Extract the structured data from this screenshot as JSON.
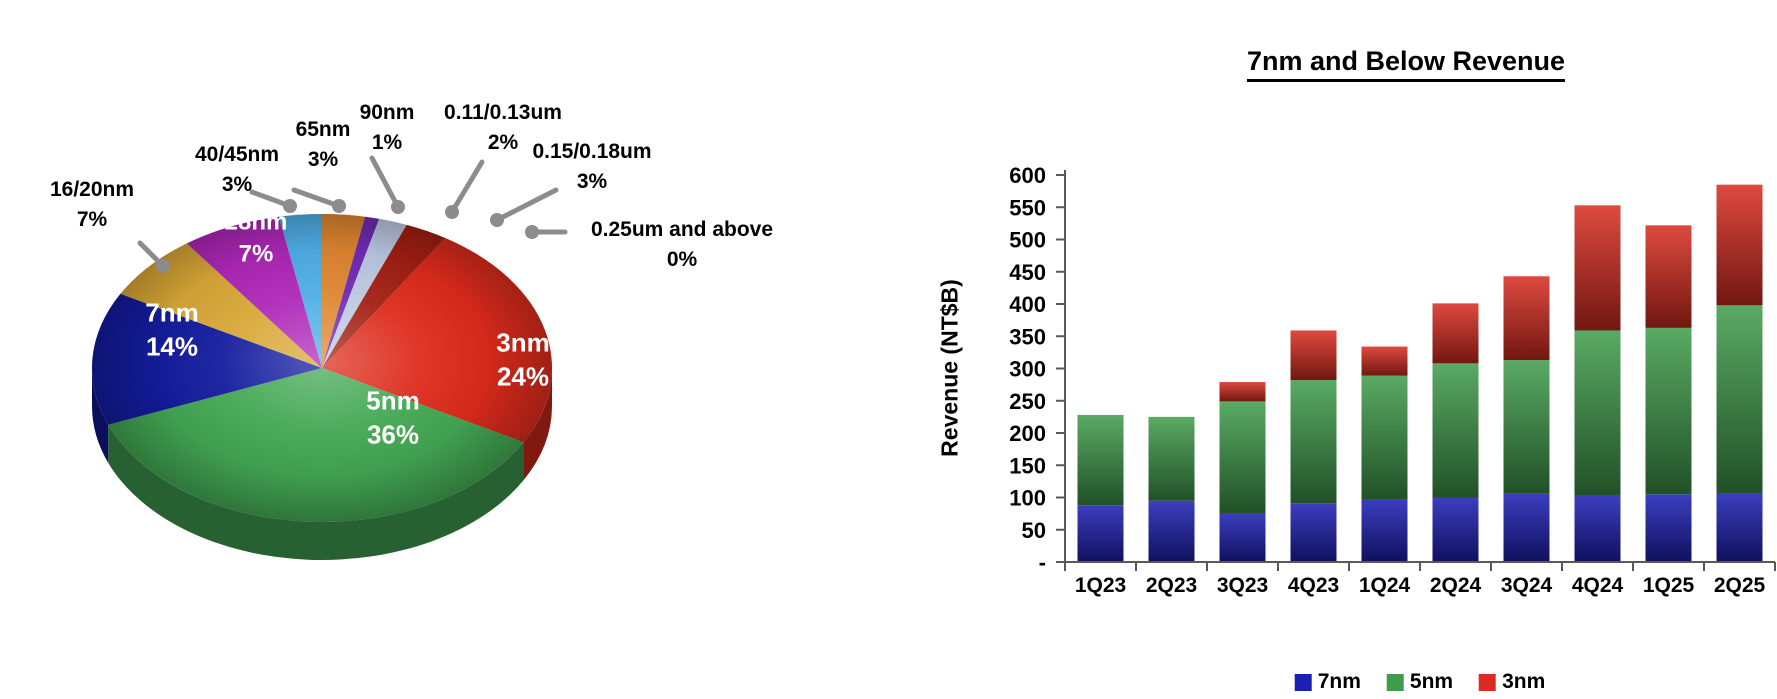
{
  "page": {
    "background": "#ffffff"
  },
  "chart_data": [
    {
      "id": "wafer-revenue-by-technology-pie",
      "type": "pie",
      "style": "3d",
      "start_angle_deg_clockwise_from_12": 32.4,
      "slices": [
        {
          "label": "3nm",
          "pct": 24,
          "pct_text": "24%",
          "color": "#DD2B1C",
          "label_position": "inside"
        },
        {
          "label": "5nm",
          "pct": 36,
          "pct_text": "36%",
          "color": "#43A854",
          "label_position": "inside"
        },
        {
          "label": "7nm",
          "pct": 14,
          "pct_text": "14%",
          "color": "#141C9E",
          "label_position": "inside"
        },
        {
          "label": "16/20nm",
          "pct": 7,
          "pct_text": "7%",
          "color": "#D9A737",
          "label_position": "outside"
        },
        {
          "label": "28nm",
          "pct": 7,
          "pct_text": "7%",
          "color": "#AE27B8",
          "label_position": "inside"
        },
        {
          "label": "40/45nm",
          "pct": 3,
          "pct_text": "3%",
          "color": "#4FAEE6",
          "label_position": "outside"
        },
        {
          "label": "65nm",
          "pct": 3,
          "pct_text": "3%",
          "color": "#DE8630",
          "label_position": "outside"
        },
        {
          "label": "90nm",
          "pct": 1,
          "pct_text": "1%",
          "color": "#6F2BB4",
          "label_position": "outside"
        },
        {
          "label": "0.11/0.13um",
          "pct": 2,
          "pct_text": "2%",
          "color": "#BCC9E2",
          "label_position": "outside"
        },
        {
          "label": "0.15/0.18um",
          "pct": 3,
          "pct_text": "3%",
          "color": "#A21F12",
          "label_position": "outside"
        },
        {
          "label": "0.25um and above",
          "pct": 0,
          "pct_text": "0%",
          "color": "#8A1208",
          "label_position": "outside"
        }
      ]
    },
    {
      "id": "7nm-and-below-revenue-bars",
      "type": "bar",
      "stacked": true,
      "title": "7nm and Below Revenue",
      "ylabel": "Revenue (NT$B)",
      "categories": [
        "1Q23",
        "2Q23",
        "3Q23",
        "4Q23",
        "1Q24",
        "2Q24",
        "3Q24",
        "4Q24",
        "1Q25",
        "2Q25"
      ],
      "series": [
        {
          "name": "7nm",
          "color": "#1C1FB4",
          "values": [
            88,
            95,
            76,
            91,
            97,
            100,
            106,
            103,
            105,
            107
          ]
        },
        {
          "name": "5nm",
          "color": "#3F9C4B",
          "values": [
            140,
            130,
            173,
            191,
            192,
            208,
            207,
            256,
            258,
            291
          ]
        },
        {
          "name": "3nm",
          "color": "#D92C20",
          "values": [
            0,
            0,
            30,
            77,
            45,
            93,
            130,
            194,
            159,
            187
          ]
        }
      ],
      "totals": [
        228,
        225,
        279,
        359,
        334,
        401,
        443,
        553,
        522,
        585
      ],
      "ylim": [
        0,
        600
      ],
      "ytick_step": 50,
      "ytick_labels": [
        "-",
        "50",
        "100",
        "150",
        "200",
        "250",
        "300",
        "350",
        "400",
        "450",
        "500",
        "550",
        "600"
      ],
      "grid": false,
      "legend_position": "bottom"
    }
  ]
}
